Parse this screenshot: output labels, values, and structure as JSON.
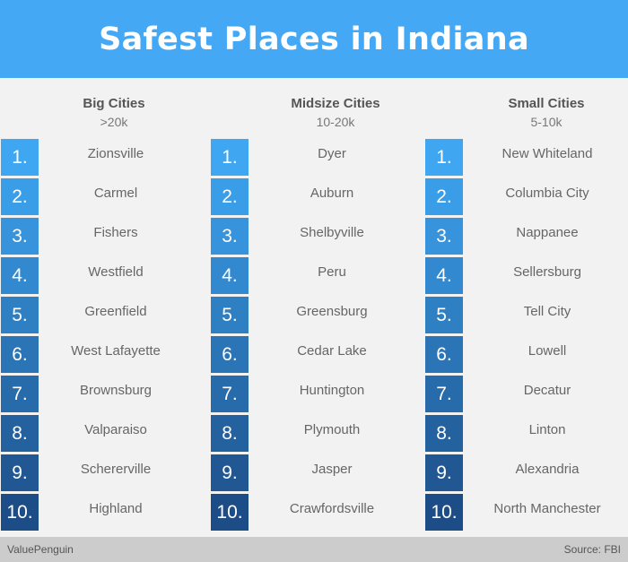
{
  "title": "Safest Places in Indiana",
  "rank_colors": [
    "#3fa7f2",
    "#3a9de7",
    "#3793db",
    "#3389cf",
    "#2f7fc3",
    "#2b75b7",
    "#286bab",
    "#24619f",
    "#215793",
    "#1d4d87"
  ],
  "columns": [
    {
      "title": "Big Cities",
      "subtitle": ">20k",
      "ranks": [
        "1.",
        "2.",
        "3.",
        "4.",
        "5.",
        "6.",
        "7.",
        "8.",
        "9.",
        "10."
      ],
      "cities": [
        "Zionsville",
        "Carmel",
        "Fishers",
        "Westfield",
        "Greenfield",
        "West Lafayette",
        "Brownsburg",
        "Valparaiso",
        "Schererville",
        "Highland"
      ]
    },
    {
      "title": "Midsize Cities",
      "subtitle": "10-20k",
      "ranks": [
        "1.",
        "2.",
        "3.",
        "4.",
        "5.",
        "6.",
        "7.",
        "8.",
        "9.",
        "10."
      ],
      "cities": [
        "Dyer",
        "Auburn",
        "Shelbyville",
        "Peru",
        "Greensburg",
        "Cedar Lake",
        "Huntington",
        "Plymouth",
        "Jasper",
        "Crawfordsville"
      ]
    },
    {
      "title": "Small Cities",
      "subtitle": "5-10k",
      "ranks": [
        "1.",
        "2.",
        "3.",
        "4.",
        "5.",
        "6.",
        "7.",
        "8.",
        "9.",
        "10."
      ],
      "cities": [
        "New Whiteland",
        "Columbia City",
        "Nappanee",
        "Sellersburg",
        "Tell City",
        "Lowell",
        "Decatur",
        "Linton",
        "Alexandria",
        "North Manchester"
      ]
    }
  ],
  "footer": {
    "left": "ValuePenguin",
    "right": "Source: FBI"
  }
}
